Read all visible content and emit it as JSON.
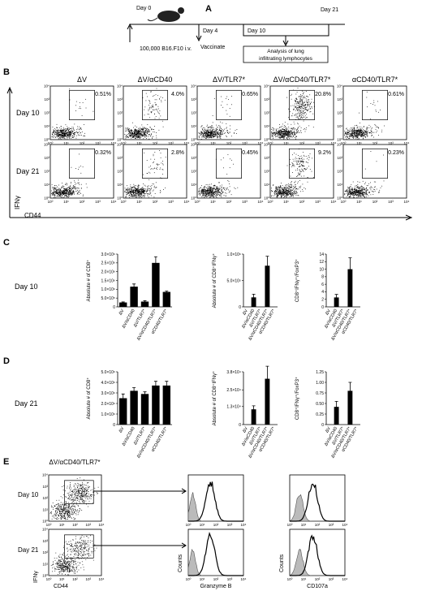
{
  "panel_a": {
    "label": "A",
    "day0": "Day 0",
    "day4": "Day 4",
    "day10": "Day 10",
    "day21": "Day 21",
    "injection": "100,000 B16.F10 i.v.",
    "vaccinate": "Vaccinate",
    "analysis": [
      "Analysis of lung",
      "infiltrating lymphocytes"
    ]
  },
  "panel_b": {
    "label": "B",
    "columns": [
      "ΔV",
      "ΔV/αCD40",
      "ΔV/TLR7*",
      "ΔV/αCD40/TLR7*",
      "αCD40/TLR7*"
    ],
    "rows": [
      {
        "name": "Day 10",
        "percents": [
          "0.51%",
          "4.0%",
          "0.65%",
          "20.8%",
          "0.61%"
        ]
      },
      {
        "name": "Day 21",
        "percents": [
          "0.32%",
          "2.8%",
          "0.45%",
          "9.2%",
          "0.23%"
        ]
      }
    ],
    "y_axis": "IFNγ",
    "x_axis": "CD44",
    "axis_ticks": [
      "10⁰",
      "10¹",
      "10²",
      "10³",
      "10⁴"
    ]
  },
  "panel_c": {
    "label": "C",
    "row": "Day 10"
  },
  "panel_d": {
    "label": "D",
    "row": "Day 21"
  },
  "chart_data": [
    {
      "type": "bar",
      "ylabel": "Absolute # of CD8⁺",
      "categories": [
        "ΔV",
        "ΔV/αCD40",
        "ΔV/TLR7*",
        "ΔV/αCD40/TLR7*",
        "αCD40/TLR7*"
      ],
      "values": [
        250000,
        1150000,
        300000,
        2500000,
        850000
      ],
      "errors": [
        30000,
        150000,
        50000,
        350000,
        50000
      ],
      "color": "#000000",
      "ylim": [
        0,
        3000000
      ],
      "yticks": [
        0,
        {
          "value": 500000,
          "label": "5.0×10⁵"
        },
        {
          "value": 1000000,
          "label": "1.0×10⁶"
        },
        {
          "value": 1500000,
          "label": "1.5×10⁶"
        },
        {
          "value": 2000000,
          "label": "2.0×10⁶"
        },
        {
          "value": 2500000,
          "label": "2.5×10⁶"
        },
        {
          "value": 3000000,
          "label": "3.0×10⁶"
        }
      ]
    },
    {
      "type": "bar",
      "ylabel": "Absolute # of CD8⁺IFNγ⁺",
      "categories": [
        "ΔV",
        "ΔV/αCD40",
        "ΔV/TLR7*",
        "ΔV/αCD40/TLR7*",
        "αCD40/TLR7*"
      ],
      "values": [
        0,
        180000,
        0,
        780000,
        0
      ],
      "errors": [
        0,
        60000,
        0,
        180000,
        0
      ],
      "color": "#000000",
      "ylim": [
        0,
        1000000
      ],
      "yticks": [
        0,
        {
          "value": 500000,
          "label": "5.0×10⁵"
        },
        {
          "value": 1000000,
          "label": "1.0×10⁶"
        }
      ]
    },
    {
      "type": "bar",
      "ylabel": "CD8⁺IFNγ⁺/FoxP3⁺",
      "categories": [
        "ΔV",
        "ΔV/αCD40",
        "ΔV/TLR7*",
        "ΔV/αCD40/TLR7*",
        "αCD40/TLR7*"
      ],
      "values": [
        0,
        2.5,
        0,
        10,
        0
      ],
      "errors": [
        0,
        0.8,
        0,
        3,
        0
      ],
      "color": "#000000",
      "ylim": [
        0,
        14
      ],
      "yticks": [
        0,
        2,
        4,
        6,
        8,
        10,
        12,
        14
      ]
    },
    {
      "type": "bar",
      "ylabel": "Absolute # of CD8⁺",
      "categories": [
        "ΔV",
        "ΔV/αCD40",
        "ΔV/TLR7*",
        "ΔV/αCD40/TLR7*",
        "αCD40/TLR7*"
      ],
      "values": [
        2500000,
        3200000,
        2900000,
        3700000,
        3700000
      ],
      "errors": [
        400000,
        300000,
        200000,
        400000,
        400000
      ],
      "color": "#000000",
      "ylim": [
        0,
        5000000
      ],
      "yticks": [
        0,
        {
          "value": 1000000,
          "label": "1.0×10⁶"
        },
        {
          "value": 2000000,
          "label": "2.0×10⁶"
        },
        {
          "value": 3000000,
          "label": "3.0×10⁶"
        },
        {
          "value": 4000000,
          "label": "4.0×10⁶"
        },
        {
          "value": 5000000,
          "label": "5.0×10⁶"
        }
      ]
    },
    {
      "type": "bar",
      "ylabel": "Absolute # of CD8⁺IFNγ⁺",
      "categories": [
        "ΔV",
        "ΔV/αCD40",
        "ΔV/TLR7*",
        "ΔV/αCD40/TLR7*",
        "αCD40/TLR7*"
      ],
      "values": [
        0,
        11000,
        0,
        33000,
        0
      ],
      "errors": [
        0,
        2500,
        0,
        9000,
        0
      ],
      "color": "#000000",
      "ylim": [
        0,
        38000
      ],
      "yticks": [
        0,
        {
          "value": 13000,
          "label": "1.3×10⁴"
        },
        {
          "value": 25000,
          "label": "2.5×10⁴"
        },
        {
          "value": 38000,
          "label": "3.8×10⁴"
        }
      ]
    },
    {
      "type": "bar",
      "ylabel": "CD8⁺IFNγ⁺/FoxP3⁺",
      "categories": [
        "ΔV",
        "ΔV/αCD40",
        "ΔV/TLR7*",
        "ΔV/αCD40/TLR7*",
        "αCD40/TLR7*"
      ],
      "values": [
        0,
        0.42,
        0,
        0.8,
        0
      ],
      "errors": [
        0,
        0.13,
        0,
        0.2,
        0
      ],
      "color": "#000000",
      "ylim": [
        0,
        1.25
      ],
      "yticks": [
        0,
        0.25,
        {
          "value": 0.5,
          "label": "0.50"
        },
        0.75,
        {
          "value": 1,
          "label": "1.00"
        },
        1.25
      ]
    }
  ],
  "panel_e": {
    "label": "E",
    "title": "ΔV/αCD40/TLR7*",
    "rows": [
      "Day 10",
      "Day 21"
    ],
    "y_axis": "IFNγ",
    "x_axis": "CD44",
    "hist_y": "Counts",
    "hist_x": [
      "Granzyme B",
      "CD107a"
    ]
  }
}
